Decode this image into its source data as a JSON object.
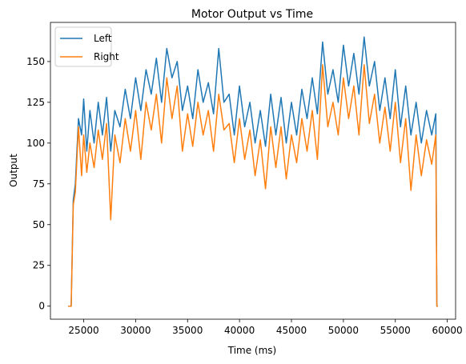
{
  "chart_data": {
    "type": "line",
    "title": "Motor Output vs Time",
    "xlabel": "Time (ms)",
    "ylabel": "Output",
    "xlim": [
      21800,
      60800
    ],
    "ylim": [
      -8,
      174
    ],
    "xticks": [
      25000,
      30000,
      35000,
      40000,
      45000,
      50000,
      55000,
      60000
    ],
    "xtick_labels": [
      "25000",
      "30000",
      "35000",
      "40000",
      "45000",
      "50000",
      "55000",
      "60000"
    ],
    "yticks": [
      0,
      25,
      50,
      75,
      100,
      125,
      150
    ],
    "ytick_labels": [
      "0",
      "25",
      "50",
      "75",
      "100",
      "125",
      "150"
    ],
    "grid": false,
    "legend_position": "top-left",
    "series": [
      {
        "name": "Left",
        "color": "#1f77b4",
        "x": [
          23500,
          23800,
          24000,
          24200,
          24500,
          24800,
          25000,
          25300,
          25600,
          26000,
          26400,
          26800,
          27200,
          27600,
          28000,
          28500,
          29000,
          29500,
          30000,
          30500,
          31000,
          31500,
          32000,
          32500,
          33000,
          33500,
          34000,
          34500,
          35000,
          35500,
          36000,
          36500,
          37000,
          37500,
          38000,
          38500,
          39000,
          39500,
          40000,
          40500,
          41000,
          41500,
          42000,
          42500,
          43000,
          43500,
          44000,
          44500,
          45000,
          45500,
          46000,
          46500,
          47000,
          47500,
          48000,
          48500,
          49000,
          49500,
          50000,
          50500,
          51000,
          51500,
          52000,
          52500,
          53000,
          53500,
          54000,
          54500,
          55000,
          55500,
          56000,
          56500,
          57000,
          57500,
          58000,
          58500,
          58900,
          59000,
          59100
        ],
        "y": [
          0,
          0,
          65,
          75,
          115,
          105,
          127,
          95,
          120,
          100,
          125,
          105,
          128,
          95,
          120,
          110,
          133,
          115,
          140,
          120,
          145,
          130,
          152,
          125,
          158,
          140,
          150,
          120,
          135,
          115,
          145,
          125,
          137,
          118,
          158,
          125,
          130,
          105,
          135,
          110,
          125,
          100,
          120,
          98,
          130,
          105,
          128,
          100,
          125,
          105,
          133,
          115,
          140,
          118,
          162,
          130,
          145,
          125,
          160,
          135,
          155,
          130,
          165,
          135,
          150,
          120,
          140,
          115,
          145,
          110,
          135,
          105,
          125,
          100,
          120,
          105,
          118,
          0,
          0
        ]
      },
      {
        "name": "Right",
        "color": "#ff7f0e",
        "x": [
          23500,
          23800,
          24000,
          24200,
          24500,
          24800,
          25000,
          25300,
          25600,
          26000,
          26400,
          26800,
          27200,
          27600,
          28000,
          28500,
          29000,
          29500,
          30000,
          30500,
          31000,
          31500,
          32000,
          32500,
          33000,
          33500,
          34000,
          34500,
          35000,
          35500,
          36000,
          36500,
          37000,
          37500,
          38000,
          38500,
          39000,
          39500,
          40000,
          40500,
          41000,
          41500,
          42000,
          42500,
          43000,
          43500,
          44000,
          44500,
          45000,
          45500,
          46000,
          46500,
          47000,
          47500,
          48000,
          48500,
          49000,
          49500,
          50000,
          50500,
          51000,
          51500,
          52000,
          52500,
          53000,
          53500,
          54000,
          54500,
          55000,
          55500,
          56000,
          56500,
          57000,
          57500,
          58000,
          58500,
          58900,
          59000,
          59100
        ],
        "y": [
          0,
          0,
          62,
          70,
          110,
          80,
          105,
          82,
          100,
          85,
          108,
          90,
          112,
          53,
          105,
          88,
          115,
          95,
          120,
          90,
          125,
          108,
          130,
          100,
          140,
          115,
          135,
          95,
          118,
          98,
          125,
          105,
          120,
          95,
          130,
          108,
          112,
          88,
          115,
          90,
          108,
          80,
          102,
          72,
          110,
          85,
          110,
          78,
          105,
          88,
          115,
          95,
          120,
          90,
          148,
          110,
          125,
          105,
          140,
          115,
          135,
          105,
          148,
          112,
          130,
          100,
          122,
          95,
          125,
          88,
          115,
          71,
          105,
          80,
          102,
          87,
          105,
          0,
          0
        ]
      }
    ]
  }
}
